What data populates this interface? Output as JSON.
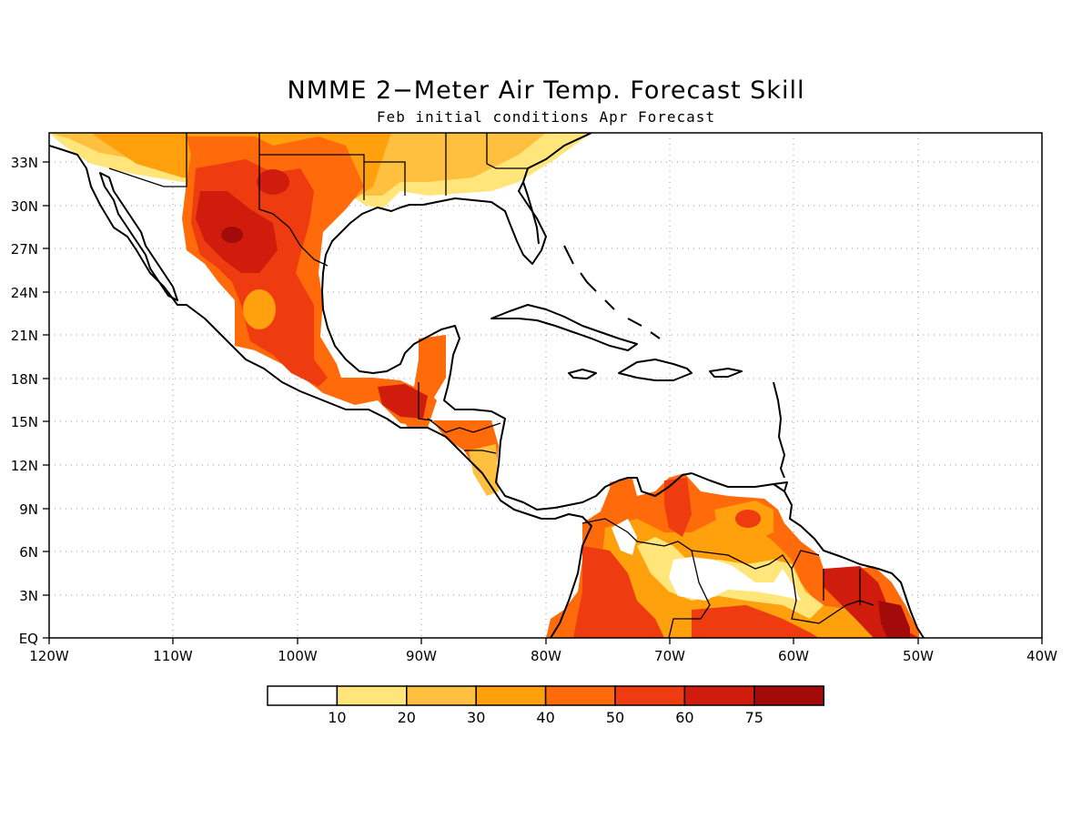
{
  "title": "NMME 2−Meter Air Temp. Forecast Skill",
  "subtitle": "Feb initial conditions  Apr Forecast",
  "axes": {
    "x_ticks": [
      "120W",
      "110W",
      "100W",
      "90W",
      "80W",
      "70W",
      "60W",
      "50W",
      "40W"
    ],
    "y_ticks": [
      "EQ",
      "3N",
      "6N",
      "9N",
      "12N",
      "15N",
      "18N",
      "21N",
      "24N",
      "27N",
      "30N",
      "33N"
    ]
  },
  "colorbar": {
    "colors": [
      "#ffffff",
      "#ffe57a",
      "#ffbf3f",
      "#ffa00c",
      "#ff6a0a",
      "#ee3b0f",
      "#d01c0c",
      "#a30b0b"
    ],
    "labels": [
      "10",
      "20",
      "30",
      "40",
      "50",
      "60",
      "75"
    ]
  }
}
